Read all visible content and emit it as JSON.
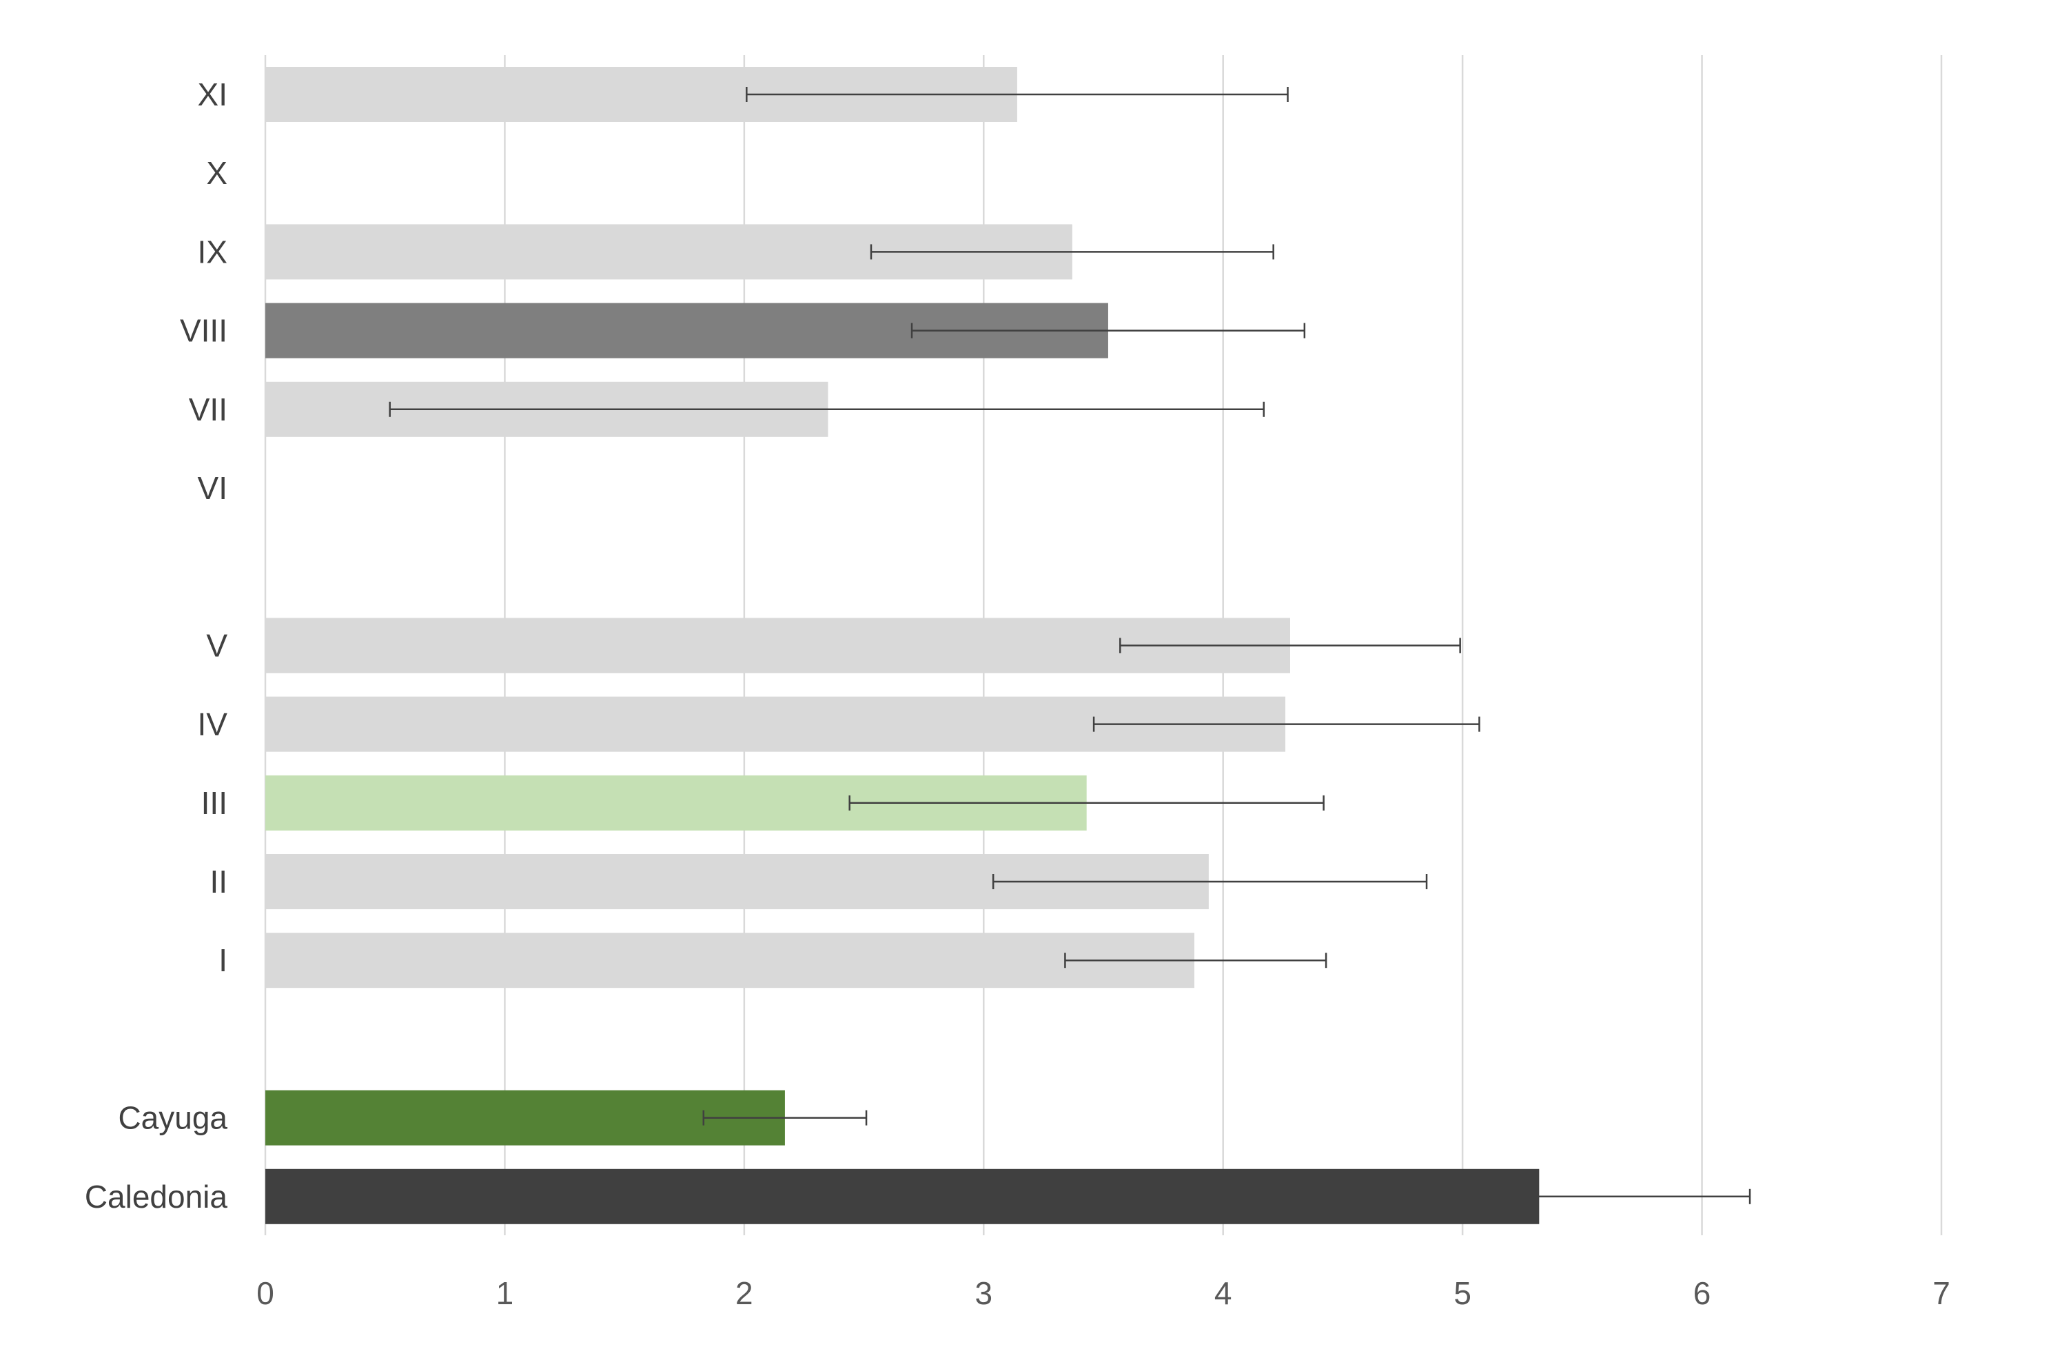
{
  "chart_data": {
    "type": "bar",
    "orientation": "horizontal",
    "title": "",
    "xlabel": "",
    "ylabel": "",
    "xlim": [
      0,
      7
    ],
    "xticks": [
      0,
      1,
      2,
      3,
      4,
      5,
      6,
      7
    ],
    "grid": true,
    "legend": "none",
    "categories": [
      "XI",
      "X",
      "IX",
      "VIII",
      "VII",
      "VI",
      "",
      "V",
      "IV",
      "III",
      "II",
      "I",
      "",
      "Cayuga",
      "Caledonia"
    ],
    "series": [
      {
        "values": [
          3.14,
          null,
          3.37,
          3.52,
          2.35,
          null,
          null,
          4.28,
          4.26,
          3.43,
          3.94,
          3.88,
          null,
          2.17,
          5.32
        ],
        "error_low": [
          2.01,
          null,
          2.53,
          2.7,
          0.52,
          null,
          null,
          3.57,
          3.46,
          2.44,
          3.04,
          3.34,
          null,
          1.83,
          4.44
        ],
        "error_high": [
          4.27,
          null,
          4.21,
          4.34,
          4.17,
          null,
          null,
          4.99,
          5.07,
          4.42,
          4.85,
          4.43,
          null,
          2.51,
          6.2
        ],
        "colors": [
          "#d9d9d9",
          null,
          "#d9d9d9",
          "#7f7f7f",
          "#d9d9d9",
          null,
          null,
          "#d9d9d9",
          "#d9d9d9",
          "#c5e0b4",
          "#d9d9d9",
          "#d9d9d9",
          null,
          "#548235",
          "#404040"
        ]
      }
    ]
  }
}
